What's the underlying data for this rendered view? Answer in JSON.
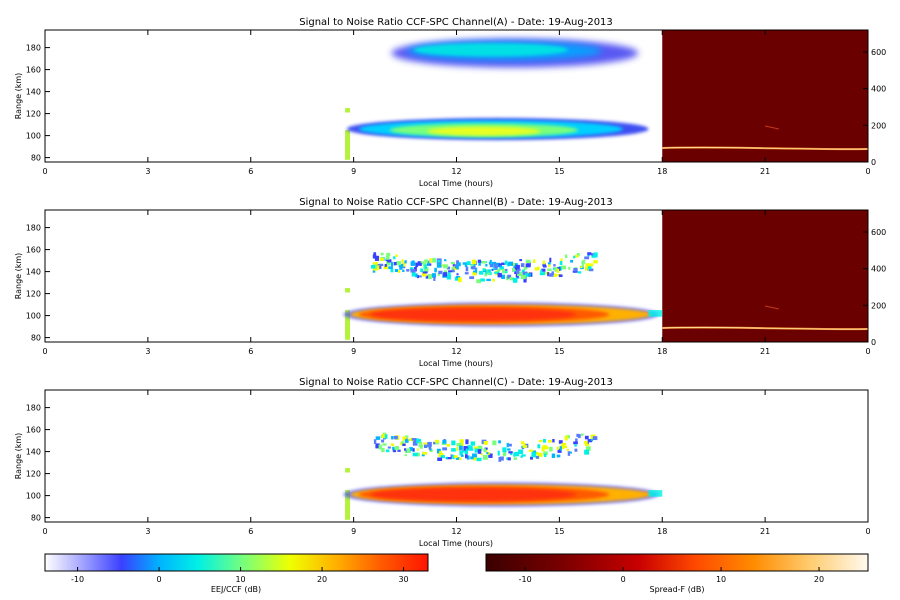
{
  "chart_data": [
    {
      "type": "heatmap",
      "title": "Signal to Noise Ratio CCF-SPC Channel(A) - Date: 19-Aug-2013",
      "xlabel": "Local Time (hours)",
      "ylabel": "Range (km)",
      "xlim": [
        0,
        24
      ],
      "ylim": [
        76,
        196
      ],
      "xticks": [
        "0",
        "3",
        "6",
        "9",
        "12",
        "15",
        "18",
        "21",
        "0"
      ],
      "yticks": [
        80,
        100,
        120,
        140,
        160,
        180
      ],
      "right_ylim": [
        0,
        720
      ],
      "right_yticks": [
        0,
        200,
        400,
        600
      ],
      "spread_f_panel": true,
      "echo_regions": [
        {
          "name": "upper",
          "x": [
            10.2,
            17.6
          ],
          "y": [
            162,
            188
          ],
          "snr_db": [
            -12,
            6
          ]
        },
        {
          "name": "lower",
          "x": [
            8.8,
            17.6
          ],
          "y": [
            96,
            118
          ],
          "snr_db": [
            -8,
            20
          ]
        }
      ]
    },
    {
      "type": "heatmap",
      "title": "Signal to Noise Ratio CCF-SPC Channel(B) - Date: 19-Aug-2013",
      "xlabel": "Local Time (hours)",
      "ylabel": "Range (km)",
      "xlim": [
        0,
        24
      ],
      "ylim": [
        76,
        196
      ],
      "xticks": [
        "0",
        "3",
        "6",
        "9",
        "12",
        "15",
        "18",
        "21",
        "0"
      ],
      "yticks": [
        80,
        100,
        120,
        140,
        160,
        180
      ],
      "right_ylim": [
        0,
        720
      ],
      "right_yticks": [
        0,
        200,
        400,
        600
      ],
      "spread_f_panel": true,
      "echo_regions": [
        {
          "name": "upper",
          "x": [
            9.3,
            16.2
          ],
          "y": [
            136,
            160
          ],
          "snr_db": [
            -10,
            10
          ]
        },
        {
          "name": "lower",
          "x": [
            8.8,
            18.0
          ],
          "y": [
            92,
            108
          ],
          "snr_db": [
            24,
            32
          ]
        }
      ]
    },
    {
      "type": "heatmap",
      "title": "Signal to Noise Ratio CCF-SPC Channel(C) - Date: 19-Aug-2013",
      "xlabel": "Local Time (hours)",
      "ylabel": "Range (km)",
      "xlim": [
        0,
        24
      ],
      "ylim": [
        76,
        196
      ],
      "xticks": [
        "0",
        "3",
        "6",
        "9",
        "12",
        "15",
        "18",
        "21",
        "0"
      ],
      "yticks": [
        80,
        100,
        120,
        140,
        160,
        180
      ],
      "spread_f_panel": false,
      "echo_regions": [
        {
          "name": "upper",
          "x": [
            9.3,
            16.2
          ],
          "y": [
            136,
            160
          ],
          "snr_db": [
            -10,
            10
          ]
        },
        {
          "name": "lower",
          "x": [
            8.8,
            18.0
          ],
          "y": [
            92,
            108
          ],
          "snr_db": [
            24,
            32
          ]
        }
      ]
    }
  ],
  "colorbars": [
    {
      "label": "EEJ/CCF (dB)",
      "ticks": [
        "-10",
        "0",
        "10",
        "20",
        "30"
      ],
      "range": [
        -14,
        33
      ],
      "colormap": "jet"
    },
    {
      "label": "Spread-F (dB)",
      "ticks": [
        "-10",
        "0",
        "10",
        "20"
      ],
      "range": [
        -14,
        25
      ],
      "colormap": "hot"
    }
  ],
  "colors": {
    "spread_f_background": "#6b0000",
    "frame": "#000000",
    "marker": "#b5f23c"
  }
}
